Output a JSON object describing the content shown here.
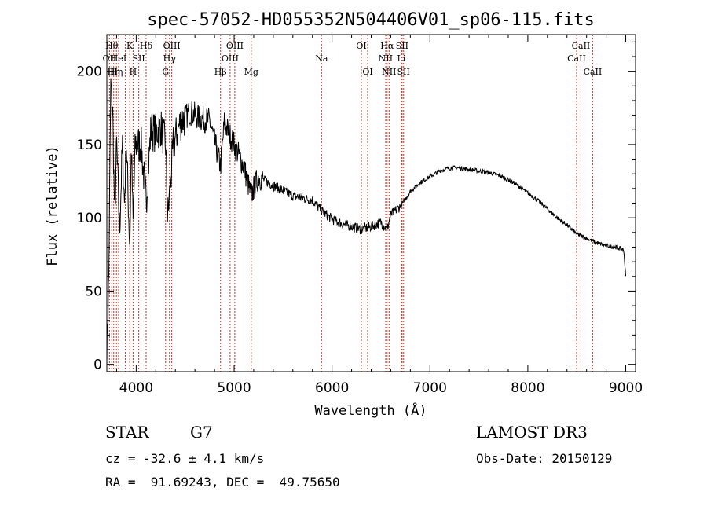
{
  "chart_data": {
    "type": "line",
    "title": "spec-57052-HD055352N504406V01_sp06-115.fits",
    "xlabel": "Wavelength (Å)",
    "ylabel": "Flux (relative)",
    "xlim": [
      3700,
      9100
    ],
    "ylim": [
      -5,
      225
    ],
    "xticks": [
      4000,
      5000,
      6000,
      7000,
      8000,
      9000
    ],
    "yticks": [
      0,
      50,
      100,
      150,
      200
    ],
    "spectrum_knots": [
      [
        3700,
        5
      ],
      [
        3720,
        60
      ],
      [
        3740,
        190
      ],
      [
        3760,
        170
      ],
      [
        3780,
        100
      ],
      [
        3800,
        150
      ],
      [
        3830,
        90
      ],
      [
        3860,
        150
      ],
      [
        3880,
        110
      ],
      [
        3900,
        150
      ],
      [
        3935,
        80
      ],
      [
        3950,
        150
      ],
      [
        3968,
        95
      ],
      [
        3990,
        150
      ],
      [
        4050,
        150
      ],
      [
        4101,
        110
      ],
      [
        4150,
        160
      ],
      [
        4200,
        158
      ],
      [
        4250,
        162
      ],
      [
        4300,
        150
      ],
      [
        4320,
        100
      ],
      [
        4340,
        115
      ],
      [
        4380,
        150
      ],
      [
        4450,
        165
      ],
      [
        4550,
        172
      ],
      [
        4650,
        168
      ],
      [
        4750,
        166
      ],
      [
        4861,
        135
      ],
      [
        4900,
        165
      ],
      [
        5000,
        150
      ],
      [
        5100,
        135
      ],
      [
        5172,
        115
      ],
      [
        5250,
        128
      ],
      [
        5400,
        122
      ],
      [
        5600,
        115
      ],
      [
        5800,
        112
      ],
      [
        5890,
        105
      ],
      [
        6000,
        99
      ],
      [
        6100,
        96
      ],
      [
        6200,
        94
      ],
      [
        6300,
        92
      ],
      [
        6400,
        94
      ],
      [
        6500,
        97
      ],
      [
        6563,
        92
      ],
      [
        6600,
        102
      ],
      [
        6700,
        108
      ],
      [
        6800,
        118
      ],
      [
        6900,
        124
      ],
      [
        7000,
        128
      ],
      [
        7100,
        132
      ],
      [
        7200,
        134
      ],
      [
        7300,
        134
      ],
      [
        7400,
        133
      ],
      [
        7500,
        132
      ],
      [
        7600,
        131
      ],
      [
        7700,
        129
      ],
      [
        7800,
        126
      ],
      [
        7900,
        122
      ],
      [
        8000,
        117
      ],
      [
        8100,
        112
      ],
      [
        8200,
        106
      ],
      [
        8300,
        100
      ],
      [
        8400,
        95
      ],
      [
        8500,
        89
      ],
      [
        8600,
        86
      ],
      [
        8700,
        83
      ],
      [
        8800,
        81
      ],
      [
        8900,
        80
      ],
      [
        8980,
        78
      ],
      [
        9000,
        60
      ]
    ],
    "spectral_lines": [
      {
        "wl": 3727,
        "label": "OII",
        "row": 2
      },
      {
        "wl": 3750,
        "label": "Hθ",
        "row": 1
      },
      {
        "wl": 3770,
        "label": "Hη",
        "row": 3
      },
      {
        "wl": 3798,
        "label": "Hη",
        "row": 3
      },
      {
        "wl": 3820,
        "label": "HeI",
        "row": 2
      },
      {
        "wl": 3889,
        "label": "",
        "row": 0
      },
      {
        "wl": 3934,
        "label": "K",
        "row": 1
      },
      {
        "wl": 3968,
        "label": "H",
        "row": 3
      },
      {
        "wl": 4026,
        "label": "SII",
        "row": 2
      },
      {
        "wl": 4101,
        "label": "Hδ",
        "row": 1
      },
      {
        "wl": 4300,
        "label": "G",
        "row": 3
      },
      {
        "wl": 4340,
        "label": "Hγ",
        "row": 2
      },
      {
        "wl": 4363,
        "label": "OIII",
        "row": 1
      },
      {
        "wl": 4861,
        "label": "Hβ",
        "row": 3
      },
      {
        "wl": 4959,
        "label": "OIII",
        "row": 2
      },
      {
        "wl": 5007,
        "label": "OIII",
        "row": 1
      },
      {
        "wl": 5175,
        "label": "Mg",
        "row": 3
      },
      {
        "wl": 5893,
        "label": "Na",
        "row": 2
      },
      {
        "wl": 6300,
        "label": "OI",
        "row": 1
      },
      {
        "wl": 6364,
        "label": "OI",
        "row": 3
      },
      {
        "wl": 6548,
        "label": "NII",
        "row": 2
      },
      {
        "wl": 6563,
        "label": "Hα",
        "row": 1
      },
      {
        "wl": 6583,
        "label": "NII",
        "row": 3
      },
      {
        "wl": 6708,
        "label": "Li",
        "row": 2
      },
      {
        "wl": 6716,
        "label": "SII",
        "row": 1
      },
      {
        "wl": 6731,
        "label": "SII",
        "row": 3
      },
      {
        "wl": 8498,
        "label": "CaII",
        "row": 2
      },
      {
        "wl": 8542,
        "label": "CaII",
        "row": 1
      },
      {
        "wl": 8662,
        "label": "CaII",
        "row": 3
      }
    ]
  },
  "info": {
    "object_type": "STAR",
    "subclass": "G7",
    "cz": "cz = -32.6 ± 4.1 km/s",
    "coords": "RA =  91.69243, DEC =  49.75650",
    "survey": "LAMOST DR3",
    "obs_date": "Obs-Date: 20150129"
  },
  "colors": {
    "lines": "#c0392b",
    "spectrum": "#000000"
  }
}
